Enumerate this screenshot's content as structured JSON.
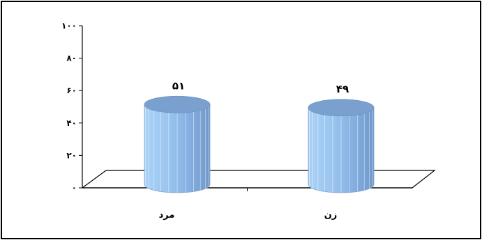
{
  "chart_data": {
    "type": "bar",
    "style": "3d-cylinder",
    "categories": [
      "مرد",
      "زن"
    ],
    "values": [
      51,
      49
    ],
    "data_labels": [
      "۵۱",
      "۴۹"
    ],
    "y_ticks": [
      0,
      20,
      40,
      60,
      80,
      100
    ],
    "y_tick_labels": [
      "۰",
      "۲۰",
      "۴۰",
      "۶۰",
      "۸۰",
      "۱۰۰"
    ],
    "ylim": [
      0,
      100
    ],
    "grid": false,
    "legend": "none",
    "bar_color": "#8fb8e8",
    "bar_top_color": "#7aa0cf"
  }
}
